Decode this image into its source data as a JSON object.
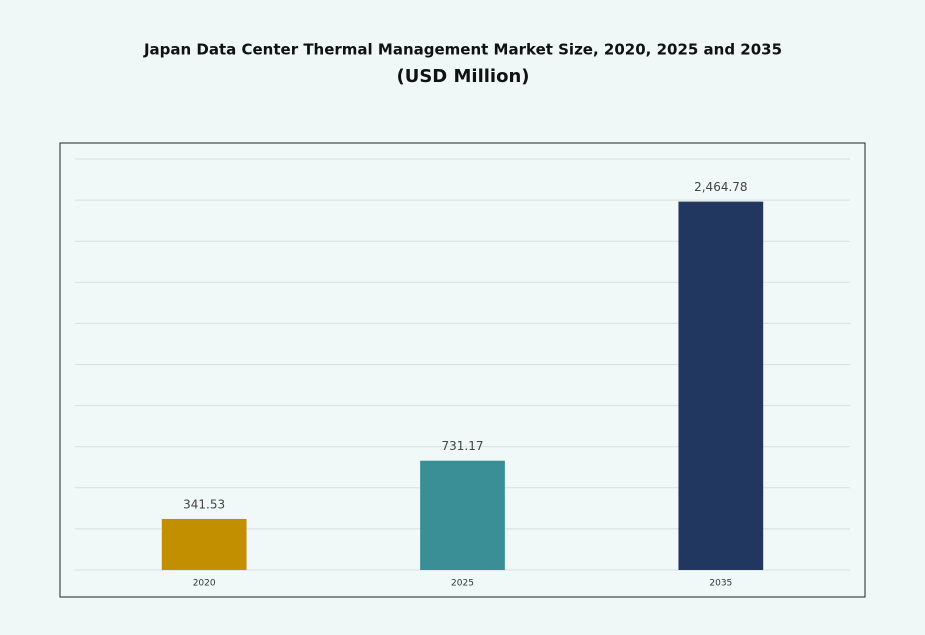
{
  "chart_data": {
    "type": "bar",
    "title": "Japan Data Center Thermal Management Market Size, 2020, 2025 and 2035",
    "subtitle": "(USD Million)",
    "categories": [
      "2020",
      "2025",
      "2035"
    ],
    "values": [
      341.53,
      731.17,
      2464.78
    ],
    "value_labels": [
      "341.53",
      "731.17",
      "2,464.78"
    ],
    "colors": [
      "#c18f00",
      "#3a8e96",
      "#213760"
    ],
    "ylim": [
      0,
      2750
    ],
    "yticks": [
      0,
      275,
      550,
      825,
      1100,
      1375,
      1650,
      1925,
      2200,
      2475,
      2750
    ],
    "grid": true
  }
}
